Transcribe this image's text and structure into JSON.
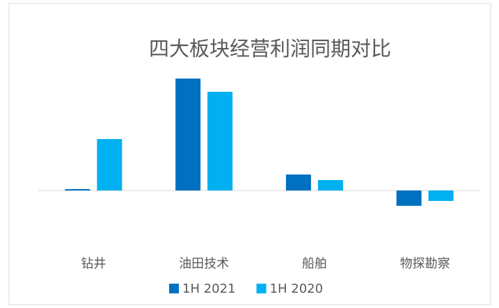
{
  "chart_data": {
    "type": "bar",
    "title": "四大板块经营利润同期对比",
    "categories": [
      "钻井",
      "油田技术",
      "船舶",
      "物探勘察"
    ],
    "series": [
      {
        "name": "1H 2021",
        "color": "#0070c0",
        "values": [
          2,
          161,
          23,
          -22
        ]
      },
      {
        "name": "1H 2020",
        "color": "#00b0f0",
        "values": [
          74,
          142,
          15,
          -15
        ]
      }
    ],
    "ylim": [
      -76,
      174
    ],
    "legend": "bottom"
  }
}
